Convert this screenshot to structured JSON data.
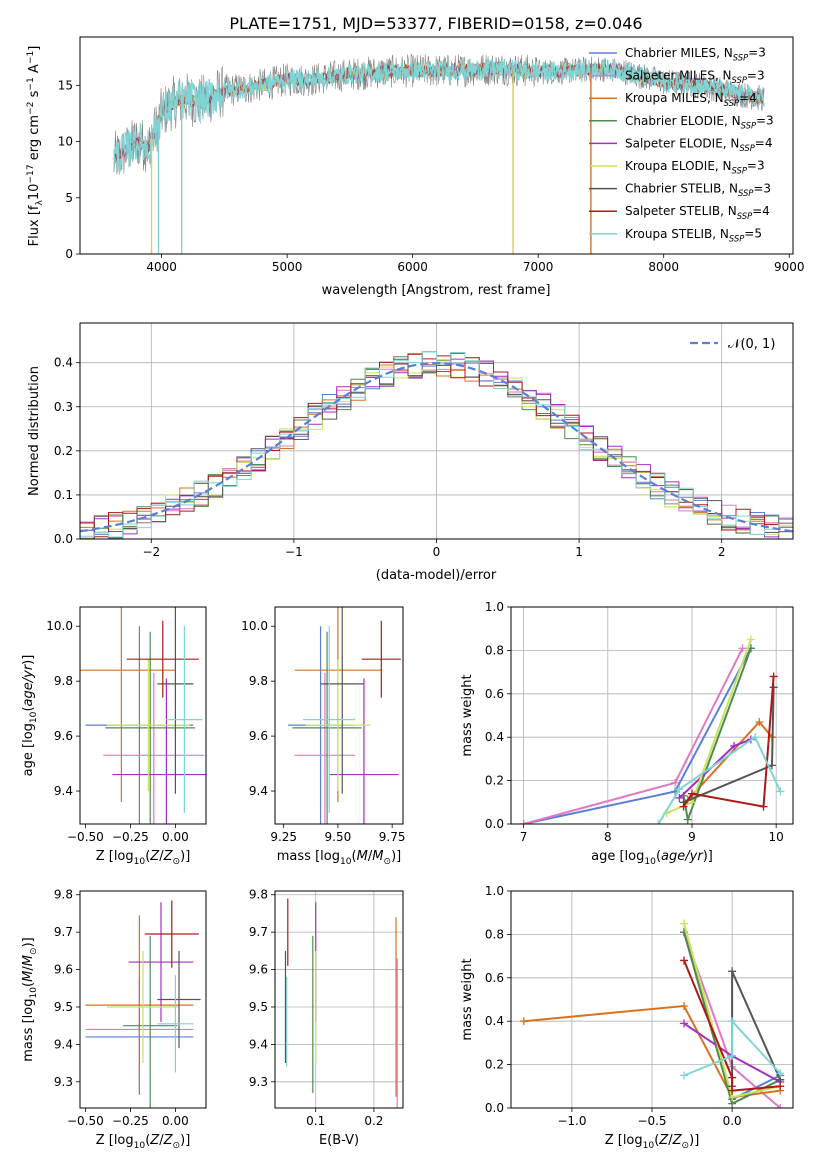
{
  "title": "PLATE=1751, MJD=53377, FIBERID=0158, z=0.046",
  "models": [
    {
      "name": "Chabrier MILES",
      "n": "3",
      "color": "#5b7fd6"
    },
    {
      "name": "Salpeter MILES",
      "n": "3",
      "color": "#e377c2"
    },
    {
      "name": "Kroupa MILES",
      "n": "4",
      "color": "#d9711f"
    },
    {
      "name": "Chabrier ELODIE",
      "n": "3",
      "color": "#4f8a4f"
    },
    {
      "name": "Salpeter ELODIE",
      "n": "4",
      "color": "#a42fc2"
    },
    {
      "name": "Kroupa ELODIE",
      "n": "3",
      "color": "#c8e35e"
    },
    {
      "name": "Chabrier STELIB",
      "n": "3",
      "color": "#555555"
    },
    {
      "name": "Salpeter STELIB",
      "n": "4",
      "color": "#b01818"
    },
    {
      "name": "Kroupa STELIB",
      "n": "5",
      "color": "#7fd4d4"
    }
  ],
  "chart_data": [
    {
      "id": "spectrum",
      "type": "line",
      "xlabel": "wavelength [Angstrom, rest frame]",
      "ylabel": "Flux [f_λ10^-17 erg cm^-2 s^-1 A^-1]",
      "xlim": [
        3350,
        9030
      ],
      "ylim": [
        0,
        19.3
      ],
      "xticks": [
        4000,
        5000,
        6000,
        7000,
        8000,
        9000
      ],
      "yticks": [
        0,
        5,
        10,
        15
      ],
      "legend_position": "right",
      "data_color": "#808080",
      "model_color": "#7fd4d4",
      "envelope": {
        "x": [
          3620,
          3700,
          3800,
          3900,
          3950,
          4000,
          4100,
          4200,
          4300,
          4500,
          4700,
          5000,
          5200,
          5500,
          5800,
          6000,
          6300,
          6500,
          6700,
          7000,
          7300,
          7500,
          7700,
          8000,
          8300,
          8500,
          8700,
          8800
        ],
        "y": [
          8.5,
          9.0,
          10.0,
          9.5,
          11.0,
          12.5,
          13.5,
          13.8,
          13.5,
          14.5,
          14.8,
          15.5,
          15.5,
          16.0,
          16.2,
          16.3,
          16.3,
          16.4,
          16.5,
          16.2,
          16.3,
          16.5,
          16.2,
          15.3,
          15.0,
          14.5,
          14.0,
          13.8
        ]
      }
    },
    {
      "id": "residuals",
      "type": "line",
      "xlabel": "(data-model)/error",
      "ylabel": "Normed distribution",
      "xlim": [
        -2.5,
        2.5
      ],
      "ylim": [
        0,
        0.49
      ],
      "xticks": [
        -2,
        -1,
        0,
        1,
        2
      ],
      "yticks": [
        0.0,
        0.1,
        0.2,
        0.3,
        0.4
      ],
      "grid": true,
      "legend": "𝒩(0, 1)",
      "legend_position": "top-right",
      "reference": {
        "mean": 0,
        "sigma": 1,
        "color": "#5b7fd6",
        "style": "dashed"
      },
      "histogram": {
        "bin_width": 0.1,
        "distribution": "normal"
      }
    },
    {
      "id": "age-vs-Z",
      "type": "scatter",
      "xlabel": "Z [log10(Z/Z⊙)]",
      "ylabel": "age  [log10(age/yr)]",
      "xlim": [
        -0.53,
        0.17
      ],
      "ylim": [
        9.28,
        10.07
      ],
      "xticks": [
        -0.5,
        -0.25,
        0.0
      ],
      "xticklabels": [
        "−0.50",
        "−0.25",
        "0.00"
      ],
      "yticks": [
        9.4,
        9.6,
        9.8,
        10.0
      ],
      "points": [
        {
          "x": -0.2,
          "xerr": 0.3,
          "y": 9.64,
          "yerr": 0.36,
          "model": 0
        },
        {
          "x": -0.12,
          "xerr": 0.28,
          "y": 9.53,
          "yerr": 0.3,
          "model": 1
        },
        {
          "x": -0.3,
          "xerr": 0.3,
          "y": 9.84,
          "yerr": 0.48,
          "model": 2
        },
        {
          "x": -0.14,
          "xerr": 0.25,
          "y": 9.63,
          "yerr": 0.35,
          "model": 3
        },
        {
          "x": -0.05,
          "xerr": 0.3,
          "y": 9.46,
          "yerr": 0.35,
          "model": 4
        },
        {
          "x": -0.15,
          "xerr": 0.23,
          "y": 9.64,
          "yerr": 0.24,
          "model": 5
        },
        {
          "x": 0.0,
          "xerr": 0.1,
          "y": 9.79,
          "yerr": 0.4,
          "model": 6
        },
        {
          "x": -0.07,
          "xerr": 0.2,
          "y": 9.88,
          "yerr": 0.14,
          "model": 7
        },
        {
          "x": 0.05,
          "xerr": 0.1,
          "y": 9.66,
          "yerr": 0.34,
          "model": 8
        }
      ]
    },
    {
      "id": "age-vs-mass",
      "type": "scatter",
      "xlabel": "mass [log10(M/M⊙)]",
      "ylabel": "",
      "xlim": [
        9.21,
        9.8
      ],
      "ylim": [
        9.28,
        10.07
      ],
      "xticks": [
        9.25,
        9.5,
        9.75
      ],
      "xticklabels": [
        "9.25",
        "9.50",
        "9.75"
      ],
      "yticks": [
        9.4,
        9.6,
        9.8,
        10.0
      ],
      "points": [
        {
          "x": 9.42,
          "xerr": 0.15,
          "y": 9.64,
          "yerr": 0.36,
          "model": 0
        },
        {
          "x": 9.44,
          "xerr": 0.14,
          "y": 9.53,
          "yerr": 0.3,
          "model": 1
        },
        {
          "x": 9.5,
          "xerr": 0.2,
          "y": 9.84,
          "yerr": 0.48,
          "model": 2
        },
        {
          "x": 9.45,
          "xerr": 0.16,
          "y": 9.63,
          "yerr": 0.35,
          "model": 3
        },
        {
          "x": 9.62,
          "xerr": 0.16,
          "y": 9.46,
          "yerr": 0.35,
          "model": 4
        },
        {
          "x": 9.5,
          "xerr": 0.15,
          "y": 9.64,
          "yerr": 0.24,
          "model": 5
        },
        {
          "x": 9.52,
          "xerr": 0.1,
          "y": 9.79,
          "yerr": 0.4,
          "model": 6
        },
        {
          "x": 9.7,
          "xerr": 0.09,
          "y": 9.88,
          "yerr": 0.14,
          "model": 7
        },
        {
          "x": 9.46,
          "xerr": 0.12,
          "y": 9.66,
          "yerr": 0.34,
          "model": 8
        }
      ]
    },
    {
      "id": "weight-vs-age",
      "type": "line",
      "xlabel": "age  [log10(age/yr)]",
      "ylabel": "mass weight",
      "xlim": [
        6.85,
        10.2
      ],
      "ylim": [
        0,
        1.0
      ],
      "xticks": [
        7,
        8,
        9,
        10
      ],
      "yticks": [
        0.0,
        0.2,
        0.4,
        0.6,
        0.8,
        1.0
      ],
      "grid": true,
      "series": [
        {
          "model": 0,
          "x": [
            7.0,
            8.8,
            9.7
          ],
          "y": [
            0.0,
            0.15,
            0.81
          ]
        },
        {
          "model": 1,
          "x": [
            7.0,
            8.8,
            9.6
          ],
          "y": [
            0.0,
            0.19,
            0.81
          ]
        },
        {
          "model": 2,
          "x": [
            8.95,
            9.8,
            9.95
          ],
          "y": [
            0.11,
            0.47,
            0.4
          ]
        },
        {
          "model": 3,
          "x": [
            8.9,
            8.95,
            9.7
          ],
          "y": [
            0.13,
            0.02,
            0.81
          ]
        },
        {
          "model": 4,
          "x": [
            8.85,
            9.5,
            9.7
          ],
          "y": [
            0.12,
            0.36,
            0.39
          ]
        },
        {
          "model": 5,
          "x": [
            8.7,
            9.0,
            9.7
          ],
          "y": [
            0.05,
            0.1,
            0.85
          ]
        },
        {
          "model": 6,
          "x": [
            8.9,
            9.95,
            9.97
          ],
          "y": [
            0.1,
            0.27,
            0.63
          ]
        },
        {
          "model": 7,
          "x": [
            8.9,
            9.0,
            9.85,
            9.97
          ],
          "y": [
            0.08,
            0.14,
            0.08,
            0.68
          ]
        },
        {
          "model": 8,
          "x": [
            8.6,
            8.85,
            9.75,
            10.05
          ],
          "y": [
            0.0,
            0.16,
            0.4,
            0.15
          ]
        }
      ]
    },
    {
      "id": "mass-vs-Z",
      "type": "scatter",
      "xlabel": "Z [log10(Z/Z⊙)]",
      "ylabel": "mass [log10(M/M⊙)]",
      "xlim": [
        -0.53,
        0.17
      ],
      "ylim": [
        9.23,
        9.81
      ],
      "xticks": [
        -0.5,
        -0.25,
        0.0
      ],
      "xticklabels": [
        "−0.50",
        "−0.25",
        "0.00"
      ],
      "yticks": [
        9.3,
        9.4,
        9.5,
        9.6,
        9.7,
        9.8
      ],
      "points": [
        {
          "x": -0.2,
          "xerr": 0.3,
          "y": 9.42,
          "yerr": 0.15,
          "model": 0
        },
        {
          "x": -0.2,
          "xerr": 0.3,
          "y": 9.44,
          "yerr": 0.14,
          "model": 1
        },
        {
          "x": -0.2,
          "xerr": 0.3,
          "y": 9.505,
          "yerr": 0.24,
          "model": 2
        },
        {
          "x": -0.14,
          "xerr": 0.15,
          "y": 9.45,
          "yerr": 0.24,
          "model": 3
        },
        {
          "x": -0.08,
          "xerr": 0.18,
          "y": 9.62,
          "yerr": 0.16,
          "model": 4
        },
        {
          "x": -0.18,
          "xerr": 0.2,
          "y": 9.5,
          "yerr": 0.15,
          "model": 5
        },
        {
          "x": 0.02,
          "xerr": 0.12,
          "y": 9.52,
          "yerr": 0.13,
          "model": 6
        },
        {
          "x": -0.02,
          "xerr": 0.15,
          "y": 9.695,
          "yerr": 0.09,
          "model": 7
        },
        {
          "x": 0.0,
          "xerr": 0.1,
          "y": 9.455,
          "yerr": 0.13,
          "model": 8
        }
      ]
    },
    {
      "id": "mass-vs-ebv",
      "type": "scatter",
      "xlabel": "E(B-V)",
      "ylabel": "",
      "xlim": [
        0.03,
        0.25
      ],
      "ylim": [
        9.23,
        9.81
      ],
      "xticks": [
        0.1,
        0.2
      ],
      "xticklabels": [
        "0.1",
        "0.2"
      ],
      "yticks": [
        9.3,
        9.4,
        9.5,
        9.6,
        9.7,
        9.8
      ],
      "grid": true,
      "points": [
        {
          "x": 0.048,
          "y": 9.5,
          "yerr": 0.15,
          "model": 6
        },
        {
          "x": 0.052,
          "y": 9.7,
          "yerr": 0.09,
          "model": 7
        },
        {
          "x": 0.05,
          "y": 9.46,
          "yerr": 0.12,
          "model": 8
        },
        {
          "x": 0.095,
          "y": 9.48,
          "yerr": 0.21,
          "model": 3
        },
        {
          "x": 0.1,
          "y": 9.62,
          "yerr": 0.16,
          "model": 4
        },
        {
          "x": 0.1,
          "y": 9.5,
          "yerr": 0.15,
          "model": 5
        },
        {
          "x": 0.238,
          "y": 9.5,
          "yerr": 0.24,
          "model": 2
        },
        {
          "x": 0.24,
          "y": 9.43,
          "yerr": 0.2,
          "model": 1
        }
      ]
    },
    {
      "id": "weight-vs-Z",
      "type": "line",
      "xlabel": "Z [log10(Z/Z⊙)]",
      "ylabel": "mass weight",
      "xlim": [
        -1.38,
        0.38
      ],
      "ylim": [
        0,
        1.0
      ],
      "xticks": [
        -1.0,
        -0.5,
        0.0
      ],
      "xticklabels": [
        "−1.0",
        "−0.5",
        "0.0"
      ],
      "yticks": [
        0.0,
        0.2,
        0.4,
        0.6,
        0.8,
        1.0
      ],
      "grid": true,
      "series": [
        {
          "model": 0,
          "x": [
            -0.3,
            0.0,
            0.3
          ],
          "y": [
            0.81,
            0.04,
            0.15
          ]
        },
        {
          "model": 1,
          "x": [
            -0.3,
            0.0,
            0.3
          ],
          "y": [
            0.81,
            0.19,
            0.0
          ]
        },
        {
          "model": 2,
          "x": [
            -1.3,
            -0.3,
            0.0,
            0.3
          ],
          "y": [
            0.4,
            0.47,
            0.05,
            0.08
          ]
        },
        {
          "model": 3,
          "x": [
            -0.3,
            0.0,
            0.3
          ],
          "y": [
            0.81,
            0.02,
            0.13
          ]
        },
        {
          "model": 4,
          "x": [
            -0.3,
            0.0,
            0.3
          ],
          "y": [
            0.39,
            0.24,
            0.12
          ]
        },
        {
          "model": 5,
          "x": [
            -0.3,
            0.0,
            0.3
          ],
          "y": [
            0.85,
            0.05,
            0.1
          ]
        },
        {
          "model": 6,
          "x": [
            0.0,
            0.0,
            0.3
          ],
          "y": [
            0.1,
            0.63,
            0.13
          ]
        },
        {
          "model": 7,
          "x": [
            -0.3,
            0.0,
            0.0,
            0.3
          ],
          "y": [
            0.68,
            0.14,
            0.08,
            0.1
          ]
        },
        {
          "model": 8,
          "x": [
            -0.3,
            0.0,
            0.0,
            0.3
          ],
          "y": [
            0.15,
            0.24,
            0.4,
            0.16
          ]
        }
      ]
    }
  ]
}
